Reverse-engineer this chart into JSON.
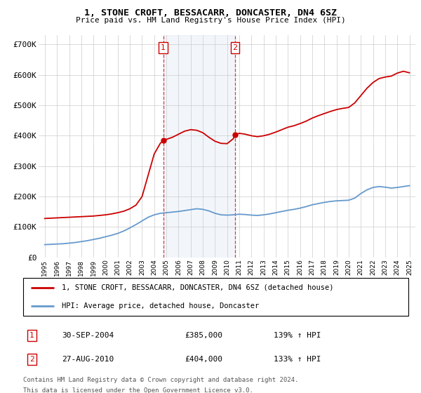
{
  "title": "1, STONE CROFT, BESSACARR, DONCASTER, DN4 6SZ",
  "subtitle": "Price paid vs. HM Land Registry's House Price Index (HPI)",
  "legend_line1": "1, STONE CROFT, BESSACARR, DONCASTER, DN4 6SZ (detached house)",
  "legend_line2": "HPI: Average price, detached house, Doncaster",
  "sale1_label": "1",
  "sale1_date": "30-SEP-2004",
  "sale1_price": "£385,000",
  "sale1_hpi": "139% ↑ HPI",
  "sale2_label": "2",
  "sale2_date": "27-AUG-2010",
  "sale2_price": "£404,000",
  "sale2_hpi": "133% ↑ HPI",
  "footnote1": "Contains HM Land Registry data © Crown copyright and database right 2024.",
  "footnote2": "This data is licensed under the Open Government Licence v3.0.",
  "sale1_x": 2004.75,
  "sale1_y": 385000,
  "sale2_x": 2010.65,
  "sale2_y": 404000,
  "house_color": "#cc0000",
  "hpi_color": "#6699cc",
  "shading_color": "#ccddf0",
  "ylim": [
    0,
    730000
  ],
  "yticks": [
    0,
    100000,
    200000,
    300000,
    400000,
    500000,
    600000,
    700000
  ],
  "ytick_labels": [
    "£0",
    "£100K",
    "£200K",
    "£300K",
    "£400K",
    "£500K",
    "£600K",
    "£700K"
  ],
  "xlim": [
    1994.5,
    2025.5
  ],
  "xticks": [
    1995,
    1996,
    1997,
    1998,
    1999,
    2000,
    2001,
    2002,
    2003,
    2004,
    2005,
    2006,
    2007,
    2008,
    2009,
    2010,
    2011,
    2012,
    2013,
    2014,
    2015,
    2016,
    2017,
    2018,
    2019,
    2020,
    2021,
    2022,
    2023,
    2024,
    2025
  ],
  "years_hpi": [
    1995.0,
    1995.5,
    1996.0,
    1996.5,
    1997.0,
    1997.5,
    1998.0,
    1998.5,
    1999.0,
    1999.5,
    2000.0,
    2000.5,
    2001.0,
    2001.5,
    2002.0,
    2002.5,
    2003.0,
    2003.5,
    2004.0,
    2004.5,
    2005.0,
    2005.5,
    2006.0,
    2006.5,
    2007.0,
    2007.5,
    2008.0,
    2008.5,
    2009.0,
    2009.5,
    2010.0,
    2010.5,
    2011.0,
    2011.5,
    2012.0,
    2012.5,
    2013.0,
    2013.5,
    2014.0,
    2014.5,
    2015.0,
    2015.5,
    2016.0,
    2016.5,
    2017.0,
    2017.5,
    2018.0,
    2018.5,
    2019.0,
    2019.5,
    2020.0,
    2020.5,
    2021.0,
    2021.5,
    2022.0,
    2022.5,
    2023.0,
    2023.5,
    2024.0,
    2024.5,
    2025.0
  ],
  "hpi_values": [
    42000,
    43000,
    44000,
    45000,
    47000,
    49000,
    52000,
    55000,
    59000,
    63000,
    68000,
    73000,
    79000,
    87000,
    97000,
    108000,
    120000,
    132000,
    140000,
    145000,
    147000,
    149000,
    151000,
    154000,
    157000,
    160000,
    158000,
    153000,
    145000,
    140000,
    139000,
    140000,
    142000,
    141000,
    139000,
    138000,
    140000,
    143000,
    147000,
    151000,
    155000,
    158000,
    162000,
    167000,
    173000,
    177000,
    181000,
    184000,
    186000,
    187000,
    188000,
    195000,
    210000,
    222000,
    230000,
    233000,
    231000,
    228000,
    230000,
    233000,
    236000
  ],
  "years_house": [
    1995.0,
    1995.5,
    1996.0,
    1996.5,
    1997.0,
    1997.5,
    1998.0,
    1998.5,
    1999.0,
    1999.5,
    2000.0,
    2000.5,
    2001.0,
    2001.5,
    2002.0,
    2002.5,
    2003.0,
    2003.5,
    2004.0,
    2004.5,
    2004.75,
    2005.0,
    2005.5,
    2006.0,
    2006.5,
    2007.0,
    2007.5,
    2008.0,
    2008.5,
    2009.0,
    2009.5,
    2010.0,
    2010.5,
    2010.65,
    2011.0,
    2011.5,
    2012.0,
    2012.5,
    2013.0,
    2013.5,
    2014.0,
    2014.5,
    2015.0,
    2015.5,
    2016.0,
    2016.5,
    2017.0,
    2017.5,
    2018.0,
    2018.5,
    2019.0,
    2019.5,
    2020.0,
    2020.5,
    2021.0,
    2021.5,
    2022.0,
    2022.5,
    2023.0,
    2023.5,
    2024.0,
    2024.5,
    2025.0
  ],
  "house_values": [
    128000,
    129000,
    130000,
    131000,
    132000,
    133000,
    134000,
    135000,
    136000,
    138000,
    140000,
    143000,
    147000,
    152000,
    160000,
    172000,
    200000,
    270000,
    340000,
    375000,
    385000,
    388000,
    395000,
    405000,
    415000,
    420000,
    418000,
    410000,
    395000,
    382000,
    375000,
    374000,
    390000,
    404000,
    408000,
    405000,
    400000,
    397000,
    400000,
    405000,
    412000,
    420000,
    428000,
    433000,
    440000,
    448000,
    458000,
    466000,
    473000,
    480000,
    486000,
    490000,
    493000,
    508000,
    532000,
    556000,
    575000,
    588000,
    593000,
    596000,
    606000,
    612000,
    607000
  ]
}
